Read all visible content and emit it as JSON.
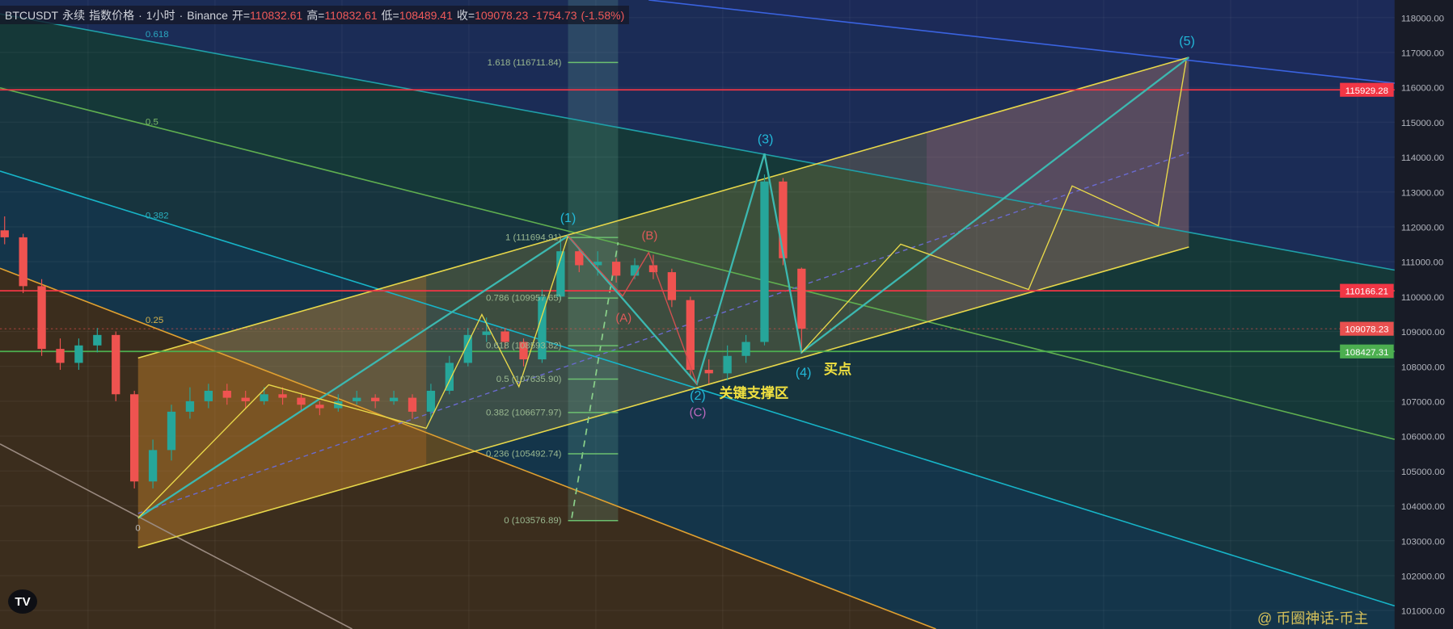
{
  "header": {
    "symbol": "BTCUSDT",
    "contract": "永续",
    "price_type": "指数价格",
    "interval": "1小时",
    "exchange": "Binance",
    "open_label": "开=",
    "open": "110832.61",
    "high_label": "高=",
    "high": "110832.61",
    "low_label": "低=",
    "low": "108489.41",
    "close_label": "收=",
    "close": "109078.23",
    "change": "-1754.73",
    "change_pct": "(-1.58%)"
  },
  "chart_data": {
    "type": "candlestick",
    "title": "",
    "ylim": [
      100800,
      118300
    ],
    "y_ticks": [
      "118000.00",
      "117000.00",
      "116000.00",
      "115000.00",
      "114000.00",
      "113000.00",
      "112000.00",
      "111000.00",
      "110000.00",
      "109000.00",
      "108000.00",
      "107000.00",
      "106000.00",
      "105000.00",
      "104000.00",
      "103000.00",
      "102000.00",
      "101000.00"
    ],
    "grid": true,
    "colors": {
      "up": "#26a69a",
      "down": "#ef5350"
    },
    "ohlc": [
      [
        111900,
        112300,
        111500,
        111700
      ],
      [
        111700,
        111800,
        110100,
        110300
      ],
      [
        110300,
        110500,
        108300,
        108500
      ],
      [
        108500,
        108800,
        107900,
        108100
      ],
      [
        108100,
        108800,
        107900,
        108600
      ],
      [
        108600,
        109100,
        108400,
        108900
      ],
      [
        108900,
        109000,
        107000,
        107200
      ],
      [
        107200,
        107300,
        104500,
        104700
      ],
      [
        104700,
        105900,
        104500,
        105600
      ],
      [
        105600,
        106900,
        105300,
        106700
      ],
      [
        106700,
        107400,
        106500,
        107000
      ],
      [
        107000,
        107500,
        106800,
        107300
      ],
      [
        107300,
        107500,
        106900,
        107100
      ],
      [
        107100,
        107300,
        106800,
        107000
      ],
      [
        107000,
        107400,
        106900,
        107200
      ],
      [
        107200,
        107400,
        106900,
        107100
      ],
      [
        107100,
        107200,
        106700,
        106900
      ],
      [
        106900,
        107000,
        106600,
        106800
      ],
      [
        106800,
        107200,
        106700,
        107000
      ],
      [
        107000,
        107300,
        106900,
        107100
      ],
      [
        107100,
        107200,
        106800,
        107000
      ],
      [
        107000,
        107300,
        106900,
        107100
      ],
      [
        107100,
        107200,
        106500,
        106700
      ],
      [
        106700,
        107500,
        106500,
        107300
      ],
      [
        107300,
        108300,
        107200,
        108100
      ],
      [
        108100,
        109100,
        108000,
        108900
      ],
      [
        108900,
        109400,
        108700,
        109000
      ],
      [
        109000,
        109100,
        108500,
        108700
      ],
      [
        108700,
        108800,
        108000,
        108200
      ],
      [
        108200,
        110200,
        108100,
        110000
      ],
      [
        110000,
        111600,
        109900,
        111300
      ],
      [
        111300,
        111400,
        110700,
        110900
      ],
      [
        110900,
        111300,
        110600,
        111000
      ],
      [
        111000,
        111100,
        110400,
        110600
      ],
      [
        110600,
        111100,
        110500,
        110900
      ],
      [
        110900,
        111200,
        110500,
        110700
      ],
      [
        110700,
        110800,
        109700,
        109900
      ],
      [
        109900,
        110000,
        107700,
        107900
      ],
      [
        107900,
        108200,
        107500,
        107800
      ],
      [
        107800,
        108600,
        107600,
        108300
      ],
      [
        108300,
        108900,
        108100,
        108700
      ],
      [
        108700,
        113500,
        108600,
        113300
      ],
      [
        113300,
        113400,
        110900,
        111100
      ],
      [
        110800,
        110832,
        108489,
        109078
      ]
    ],
    "horizontal_levels": [
      {
        "price": "115929.28",
        "color": "#f23645"
      },
      {
        "price": "110166.21",
        "color": "#f23645"
      },
      {
        "price": "109078.23",
        "color": "#e8504f",
        "style": "dotted",
        "note": "last price"
      },
      {
        "price": "108427.31",
        "color": "#4caf50"
      }
    ],
    "fib_retracement": [
      {
        "level": "1.618 (116711.84)"
      },
      {
        "level": "1 (111694.91)"
      },
      {
        "level": "0.786 (109957.65)"
      },
      {
        "level": "0.618 (108593.82)"
      },
      {
        "level": "0.5 (107635.90)"
      },
      {
        "level": "0.382 (106677.97)"
      },
      {
        "level": "0.236 (105492.74)"
      },
      {
        "level": "0 (103576.89)"
      }
    ],
    "fib_fan_labels": [
      "0.618",
      "0.5",
      "0.382",
      "0.25",
      "0"
    ],
    "wave_labels": {
      "w1": "(1)",
      "w2": "(2)",
      "w3": "(3)",
      "w4": "(4)",
      "w5": "(5)",
      "a": "(A)",
      "b": "(B)",
      "c": "(C)"
    },
    "annotations": {
      "support": "关键支撑区",
      "buy": "买点"
    }
  },
  "watermark": "@ 币圈神话-币主",
  "logo": "TV"
}
